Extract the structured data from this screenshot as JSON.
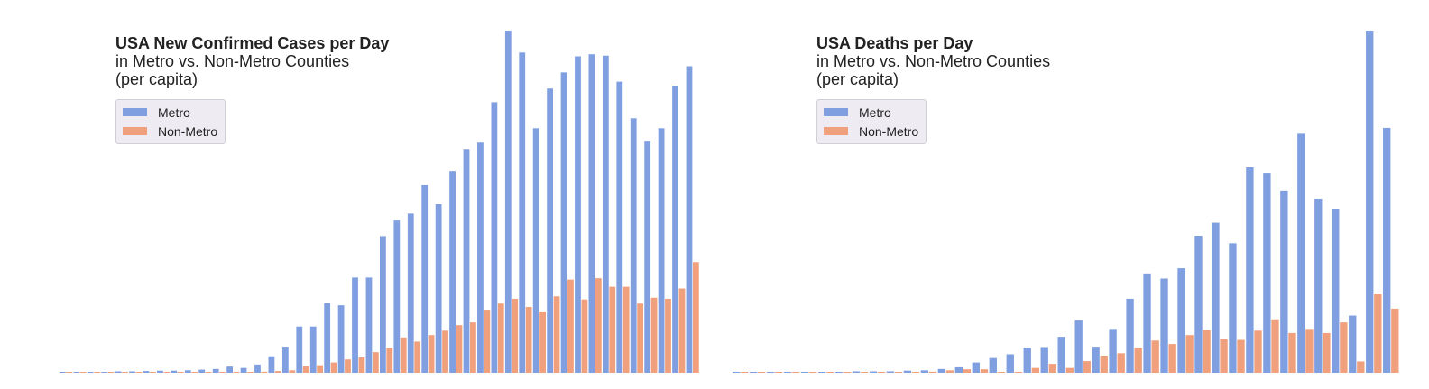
{
  "colors": {
    "metro": "#7f9fe0",
    "non_metro": "#f0a07c"
  },
  "chart_data": [
    {
      "type": "bar",
      "title": "USA New Confirmed Cases per Day",
      "subtitle_lines": [
        "in Metro vs. Non-Metro Counties",
        "(per capita)"
      ],
      "legend": {
        "placement": "upper-left",
        "entries": [
          "Metro",
          "Non-Metro"
        ]
      },
      "ylim": [
        0,
        100
      ],
      "grid": false,
      "series": [
        {
          "name": "Metro",
          "values": [
            0.2,
            0.2,
            0.2,
            0.2,
            0.4,
            0.4,
            0.5,
            0.6,
            0.6,
            0.7,
            0.9,
            1.1,
            1.8,
            1.4,
            2.4,
            4.8,
            7.6,
            13.5,
            13.5,
            20.4,
            19.7,
            27.8,
            27.8,
            39.9,
            44.7,
            46.5,
            54.9,
            49.3,
            58.9,
            65.2,
            67.3,
            79.1,
            100,
            93.6,
            71.5,
            83.1,
            87.8,
            92.5,
            93.1,
            92.7,
            85.1,
            74.4,
            67.6,
            71.5,
            83.9,
            89.6
          ]
        },
        {
          "name": "Non-Metro",
          "values": [
            0,
            0,
            0,
            0,
            0,
            0,
            0,
            0,
            0.1,
            0.1,
            0.2,
            0.2,
            0.2,
            0.2,
            0.3,
            0.5,
            0.7,
            1.9,
            2.2,
            3.0,
            3.9,
            4.5,
            6.0,
            7.3,
            10.3,
            9.1,
            11.0,
            12.3,
            13.9,
            14.7,
            18.4,
            20.2,
            21.6,
            19.2,
            17.9,
            22.3,
            27.2,
            21.4,
            27.6,
            25.1,
            25.1,
            20.2,
            21.9,
            21.6,
            24.6,
            32.3
          ]
        }
      ]
    },
    {
      "type": "bar",
      "title": "USA Deaths per Day",
      "subtitle_lines": [
        "in Metro vs. Non-Metro Counties",
        "(per capita)"
      ],
      "legend": {
        "placement": "upper-left",
        "entries": [
          "Metro",
          "Non-Metro"
        ]
      },
      "ylim": [
        0,
        100
      ],
      "grid": false,
      "series": [
        {
          "name": "Metro",
          "values": [
            0.2,
            0.2,
            0.2,
            0.2,
            0.2,
            0.2,
            0.2,
            0.4,
            0.4,
            0.4,
            0.6,
            0.7,
            1.1,
            1.6,
            3.0,
            4.3,
            5.4,
            7.3,
            7.5,
            10.5,
            15.5,
            7.6,
            12.8,
            21.6,
            29.0,
            27.5,
            30.5,
            40.0,
            43.8,
            37.8,
            60.0,
            58.4,
            53.2,
            69.9,
            50.8,
            47.9,
            16.7,
            100,
            71.6
          ]
        },
        {
          "name": "Non-Metro",
          "values": [
            0,
            0,
            0,
            0,
            0,
            0,
            0,
            0,
            0,
            0,
            0,
            0.3,
            0.7,
            1.0,
            1.0,
            0,
            0,
            1.4,
            2.6,
            1.4,
            3.4,
            5.0,
            5.7,
            7.3,
            9.4,
            8.4,
            11.0,
            12.5,
            9.8,
            9.6,
            12.3,
            15.6,
            11.6,
            12.8,
            11.6,
            14.7,
            3.3,
            23.1,
            18.7
          ]
        }
      ]
    }
  ]
}
